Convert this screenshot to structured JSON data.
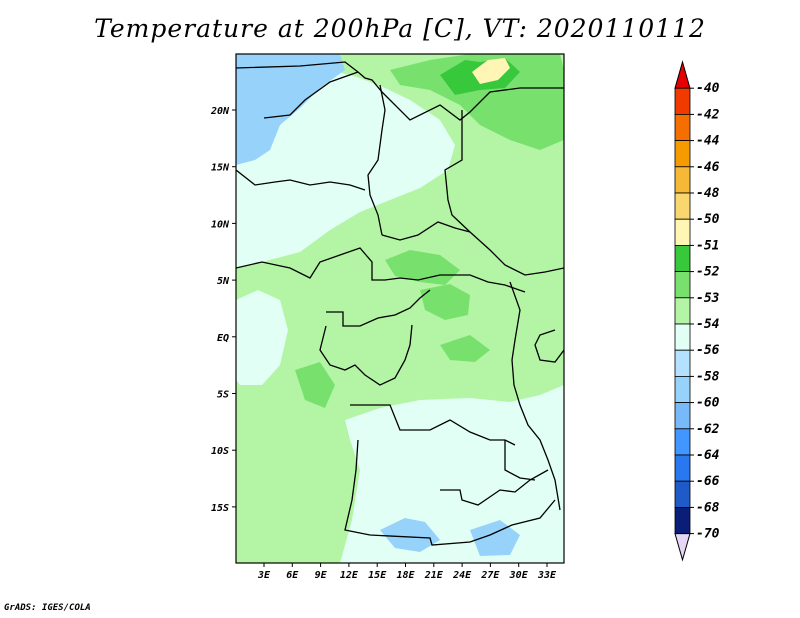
{
  "title": "Temperature at 200hPa [C], VT: 2020110112",
  "credit": "GrADS: IGES/COLA",
  "map": {
    "lat_labels": [
      "20N",
      "15N",
      "10N",
      "5N",
      "EQ",
      "5S",
      "10S",
      "15S"
    ],
    "lon_labels": [
      "3E",
      "6E",
      "9E",
      "12E",
      "15E",
      "18E",
      "21E",
      "24E",
      "27E",
      "30E",
      "33E"
    ]
  },
  "colorbar": {
    "levels": [
      {
        "label": "-40",
        "color": "#e50000"
      },
      {
        "label": "-42",
        "color": "#f03a00"
      },
      {
        "label": "-44",
        "color": "#f56e00"
      },
      {
        "label": "-46",
        "color": "#f59b00"
      },
      {
        "label": "-48",
        "color": "#f5b937"
      },
      {
        "label": "-50",
        "color": "#fad76e"
      },
      {
        "label": "-51",
        "color": "#fff5b4"
      },
      {
        "label": "-52",
        "color": "#37c83c"
      },
      {
        "label": "-53",
        "color": "#78e16e"
      },
      {
        "label": "-54",
        "color": "#b4f5a5"
      },
      {
        "label": "-56",
        "color": "#e1fff5"
      },
      {
        "label": "-58",
        "color": "#b4e1ff"
      },
      {
        "label": "-60",
        "color": "#96d2fa"
      },
      {
        "label": "-62",
        "color": "#78b9fa"
      },
      {
        "label": "-64",
        "color": "#4196ff"
      },
      {
        "label": "-66",
        "color": "#2878f0"
      },
      {
        "label": "-68",
        "color": "#1e5ac8"
      },
      {
        "label": "-70",
        "color": "#0a1e78"
      }
    ],
    "underflow_color": "#e6d7f5"
  }
}
